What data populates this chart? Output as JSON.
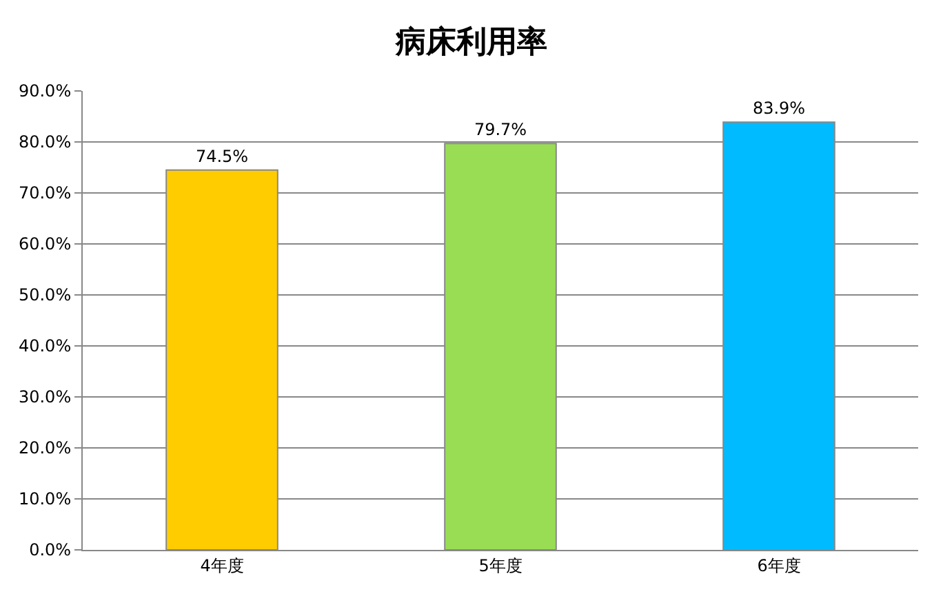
{
  "chart_data": {
    "type": "bar",
    "title": "病床利用率",
    "categories": [
      "4年度",
      "5年度",
      "6年度"
    ],
    "values": [
      74.5,
      79.7,
      83.9
    ],
    "colors": [
      "#ffcc00",
      "#99dd55",
      "#00bbff"
    ],
    "value_labels": [
      "74.5%",
      "79.7%",
      "83.9%"
    ],
    "ylim": [
      0,
      90
    ],
    "yticks": [
      {
        "value": 0,
        "label": "0.0%"
      },
      {
        "value": 10,
        "label": "10.0%"
      },
      {
        "value": 20,
        "label": "20.0%"
      },
      {
        "value": 30,
        "label": "30.0%"
      },
      {
        "value": 40,
        "label": "40.0%"
      },
      {
        "value": 50,
        "label": "50.0%"
      },
      {
        "value": 60,
        "label": "60.0%"
      },
      {
        "value": 70,
        "label": "70.0%"
      },
      {
        "value": 80,
        "label": "80.0%"
      },
      {
        "value": 90,
        "label": "90.0%"
      }
    ],
    "grid": "y"
  }
}
